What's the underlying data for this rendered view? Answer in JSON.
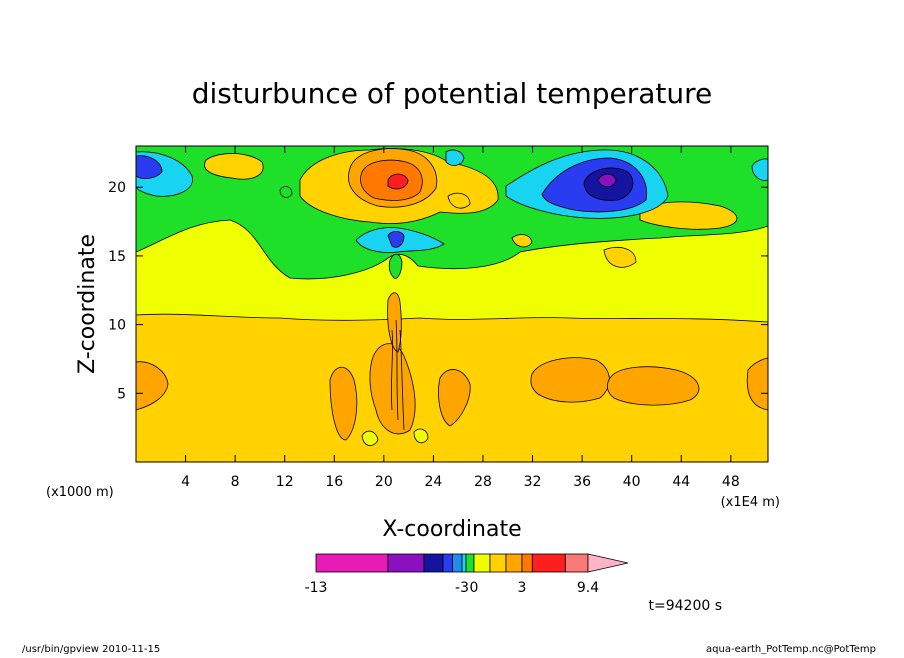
{
  "chart_data": {
    "type": "heatmap",
    "title": "disturbunce of potential temperature",
    "xlabel": "X-coordinate",
    "ylabel": "Z-coordinate",
    "x_unit_left": "(x1000 m)",
    "x_unit_right": "(x1E4 m)",
    "xlim": [
      0,
      51
    ],
    "ylim": [
      0,
      23
    ],
    "x_ticks": [
      "4",
      "8",
      "12",
      "16",
      "20",
      "24",
      "28",
      "32",
      "36",
      "40",
      "44",
      "48"
    ],
    "x_tick_values": [
      4,
      8,
      12,
      16,
      20,
      24,
      28,
      32,
      36,
      40,
      44,
      48
    ],
    "y_ticks": [
      "5",
      "10",
      "15",
      "20"
    ],
    "y_tick_values": [
      5,
      10,
      15,
      20
    ],
    "time_label": "t=94200 s",
    "colorbar": {
      "labels": [
        "-13",
        "-3",
        "0",
        "3",
        "9.4"
      ],
      "label_values": [
        -13,
        -3,
        0,
        3,
        9.4
      ],
      "bins": [
        {
          "from": -13,
          "to": -8,
          "color": "#e81cb4"
        },
        {
          "from": -8,
          "to": -5,
          "color": "#8a10c0"
        },
        {
          "from": -5,
          "to": -4,
          "color": "#1414a0"
        },
        {
          "from": -4,
          "to": -3.5,
          "color": "#2a3cf0"
        },
        {
          "from": -3.5,
          "to": -3,
          "color": "#1f8cf0"
        },
        {
          "from": -3,
          "to": -2,
          "color": "#19d4f0"
        },
        {
          "from": -2,
          "to": 0,
          "color": "#1ee028"
        },
        {
          "from": 0,
          "to": 1,
          "color": "#f0ff00"
        },
        {
          "from": 1,
          "to": 2,
          "color": "#ffd200"
        },
        {
          "from": 2,
          "to": 3,
          "color": "#ffa500"
        },
        {
          "from": 3,
          "to": 4,
          "color": "#ff7800"
        },
        {
          "from": 4,
          "to": 7.2,
          "color": "#ff1e1e"
        },
        {
          "from": 7.2,
          "to": 9.4,
          "color": "#fb7878"
        }
      ],
      "overflow_color": "#ffb4c8"
    },
    "regions": [
      {
        "level": 1,
        "color": "#ffd200",
        "x": [
          0,
          51
        ],
        "z": [
          0,
          10.8
        ]
      },
      {
        "level": 0.5,
        "color": "#f0ff00",
        "x": [
          0,
          51
        ],
        "z": [
          10.8,
          15.5
        ]
      },
      {
        "level": -1,
        "color": "#1ee028",
        "x": [
          0,
          51
        ],
        "z": [
          15.5,
          23
        ]
      }
    ],
    "extrema": [
      {
        "x": 21,
        "z": 20.3,
        "value": 8,
        "sign": "max"
      },
      {
        "x": 38.5,
        "z": 20.3,
        "value": -8,
        "sign": "min"
      },
      {
        "x": 21,
        "z": 16.3,
        "value": -3.8,
        "sign": "min"
      },
      {
        "x": 0.5,
        "z": 21,
        "value": -3.5,
        "sign": "min"
      }
    ]
  },
  "footer": {
    "left": "/usr/bin/gpview   2010-11-15",
    "right": "aqua-earth_PotTemp.nc@PotTemp"
  }
}
